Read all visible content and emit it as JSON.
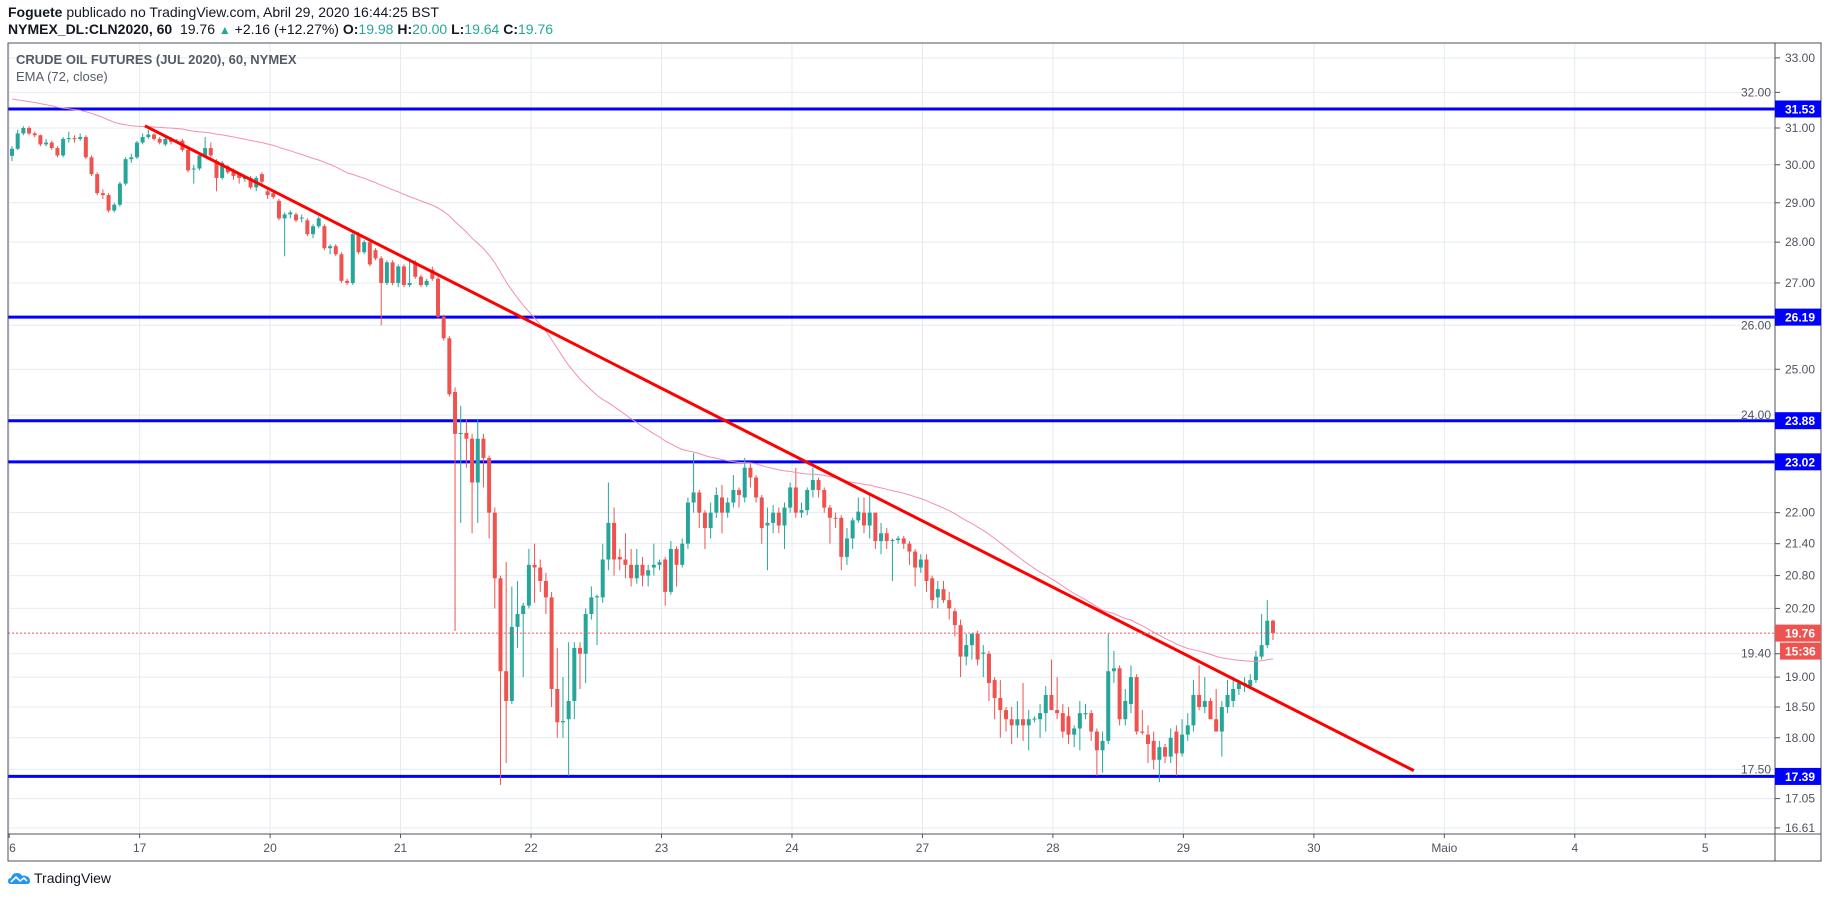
{
  "header": {
    "author": "Foguete",
    "published_text": "publicado no TradingView.com, Abril 29, 2020 16:44:25 BST",
    "symbol": "NYMEX_DL:CLN2020, 60",
    "last": "19.76",
    "change": "+2.16 (+12.27%)",
    "o_label": "O:",
    "o": "19.98",
    "h_label": "H:",
    "h": "20.00",
    "l_label": "L:",
    "l": "19.64",
    "c_label": "C:",
    "c": "19.76",
    "up_icon": "triangle-up"
  },
  "legend": {
    "title": "CRUDE OIL FUTURES (JUL 2020), 60, NYMEX",
    "indicator": "EMA (72, close)"
  },
  "footer": {
    "brand": "TradingView",
    "logo_icon": "tradingview-cloud-logo"
  },
  "chart_data": {
    "type": "candlestick",
    "title": "CRUDE OIL FUTURES (JUL 2020), 60, NYMEX",
    "interval": "60",
    "y_scale": "log",
    "ylim": [
      16.52,
      33.44
    ],
    "grid": true,
    "colors": {
      "up": "#26a69a",
      "down": "#ef5350",
      "ema": "#f48fb1",
      "trendline": "#ff0000",
      "levels": "#0000ff",
      "last_price": "#ef5350",
      "grid": "#e4ecf2"
    },
    "y_ticks": [
      "33.00",
      "32.00",
      "31.00",
      "30.00",
      "29.00",
      "28.00",
      "27.00",
      "26.00",
      "25.00",
      "24.00",
      "22.00",
      "21.40",
      "20.80",
      "20.20",
      "19.40",
      "19.00",
      "18.50",
      "18.00",
      "17.50",
      "17.05",
      "16.61"
    ],
    "x_ticks": [
      "6",
      "17",
      "20",
      "21",
      "22",
      "23",
      "24",
      "27",
      "28",
      "29",
      "30",
      "Maio",
      "4",
      "5"
    ],
    "ema": {
      "label": "EMA (72, close)",
      "period": 72,
      "start_value": 31.85
    },
    "trendline": {
      "start": {
        "bar": 23.4,
        "price": 31.06
      },
      "end": {
        "bar": 246.8,
        "price": 17.48
      }
    },
    "levels": [
      {
        "price": 31.53,
        "label": "31.53"
      },
      {
        "price": 26.19,
        "label": "26.19"
      },
      {
        "price": 23.88,
        "label": "23.88"
      },
      {
        "price": 23.02,
        "label": "23.02"
      },
      {
        "price": 17.39,
        "label": "17.39"
      }
    ],
    "last_price": {
      "price": 19.76,
      "label": "19.76",
      "countdown": "15:36"
    },
    "candles": [
      [
        30.24,
        30.5,
        30.1,
        30.43
      ],
      [
        30.43,
        30.95,
        30.4,
        30.85
      ],
      [
        30.85,
        31.05,
        30.8,
        31.0
      ],
      [
        31.0,
        31.05,
        30.8,
        30.85
      ],
      [
        30.85,
        30.9,
        30.75,
        30.8
      ],
      [
        30.8,
        30.82,
        30.5,
        30.55
      ],
      [
        30.55,
        30.7,
        30.5,
        30.6
      ],
      [
        30.6,
        30.65,
        30.4,
        30.45
      ],
      [
        30.45,
        30.5,
        30.2,
        30.25
      ],
      [
        30.25,
        30.75,
        30.2,
        30.7
      ],
      [
        30.7,
        30.9,
        30.6,
        30.72
      ],
      [
        30.72,
        30.8,
        30.6,
        30.7
      ],
      [
        30.7,
        30.85,
        30.65,
        30.75
      ],
      [
        30.75,
        30.8,
        30.15,
        30.2
      ],
      [
        30.2,
        30.25,
        29.7,
        29.75
      ],
      [
        29.75,
        29.8,
        29.2,
        29.25
      ],
      [
        29.25,
        29.35,
        29.1,
        29.2
      ],
      [
        29.2,
        29.25,
        28.75,
        28.8
      ],
      [
        28.8,
        29.0,
        28.75,
        28.95
      ],
      [
        28.95,
        29.55,
        28.9,
        29.5
      ],
      [
        29.5,
        30.2,
        29.45,
        30.15
      ],
      [
        30.15,
        30.3,
        30.05,
        30.2
      ],
      [
        30.2,
        30.65,
        30.15,
        30.6
      ],
      [
        30.6,
        30.85,
        30.55,
        30.75
      ],
      [
        30.75,
        30.95,
        30.7,
        30.82
      ],
      [
        30.82,
        30.85,
        30.65,
        30.7
      ],
      [
        30.7,
        30.75,
        30.55,
        30.6
      ],
      [
        30.55,
        30.75,
        30.5,
        30.7
      ],
      [
        30.7,
        30.75,
        30.55,
        30.62
      ],
      [
        30.65,
        30.7,
        30.6,
        30.62
      ],
      [
        30.65,
        30.7,
        30.35,
        30.4
      ],
      [
        30.4,
        30.45,
        29.8,
        29.85
      ],
      [
        29.9,
        30.0,
        29.5,
        29.9
      ],
      [
        29.9,
        30.3,
        29.85,
        30.25
      ],
      [
        30.25,
        30.75,
        30.2,
        30.45
      ],
      [
        30.45,
        30.6,
        30.2,
        30.25
      ],
      [
        30.1,
        30.15,
        29.3,
        29.65
      ],
      [
        29.65,
        30.1,
        29.6,
        30.05
      ],
      [
        29.95,
        30.0,
        29.75,
        29.8
      ],
      [
        29.85,
        29.9,
        29.6,
        29.7
      ],
      [
        29.75,
        29.8,
        29.5,
        29.65
      ],
      [
        29.62,
        29.7,
        29.55,
        29.66
      ],
      [
        29.65,
        29.7,
        29.35,
        29.4
      ],
      [
        29.4,
        29.7,
        29.3,
        29.65
      ],
      [
        29.75,
        29.8,
        29.5,
        29.55
      ],
      [
        29.3,
        29.35,
        29.1,
        29.2
      ],
      [
        29.25,
        29.3,
        29.1,
        29.15
      ],
      [
        29.05,
        29.1,
        28.55,
        28.6
      ],
      [
        28.6,
        28.75,
        27.65,
        28.7
      ],
      [
        28.7,
        28.8,
        28.6,
        28.75
      ],
      [
        28.7,
        28.75,
        28.5,
        28.55
      ],
      [
        28.6,
        28.7,
        28.5,
        28.62
      ],
      [
        28.55,
        28.6,
        28.15,
        28.2
      ],
      [
        28.2,
        28.45,
        28.1,
        28.4
      ],
      [
        28.4,
        28.65,
        28.35,
        28.6
      ],
      [
        28.4,
        28.45,
        27.8,
        27.85
      ],
      [
        27.85,
        27.95,
        27.7,
        27.9
      ],
      [
        27.9,
        27.95,
        27.65,
        27.7
      ],
      [
        27.7,
        27.75,
        27.0,
        27.05
      ],
      [
        27.05,
        27.1,
        26.95,
        27.0
      ],
      [
        27.0,
        28.3,
        26.95,
        28.2
      ],
      [
        28.2,
        28.25,
        27.7,
        27.75
      ],
      [
        27.75,
        28.05,
        27.7,
        28.0
      ],
      [
        28.0,
        28.05,
        27.4,
        27.45
      ],
      [
        27.8,
        27.85,
        27.55,
        27.6
      ],
      [
        27.6,
        27.65,
        26.0,
        27.0
      ],
      [
        27.0,
        27.55,
        26.95,
        27.5
      ],
      [
        27.5,
        27.55,
        26.95,
        27.0
      ],
      [
        27.0,
        27.45,
        26.9,
        27.4
      ],
      [
        27.4,
        27.45,
        26.9,
        26.95
      ],
      [
        26.95,
        27.6,
        26.9,
        27.0
      ],
      [
        27.5,
        27.55,
        27.1,
        27.15
      ],
      [
        27.15,
        27.2,
        26.9,
        26.95
      ],
      [
        26.95,
        27.1,
        26.9,
        27.05
      ],
      [
        27.32,
        27.4,
        27.05,
        27.1
      ],
      [
        27.1,
        27.15,
        26.15,
        26.2
      ],
      [
        26.2,
        26.25,
        25.65,
        25.7
      ],
      [
        25.7,
        25.75,
        24.4,
        24.45
      ],
      [
        24.5,
        24.6,
        19.8,
        23.6
      ],
      [
        23.6,
        24.2,
        21.8,
        23.62
      ],
      [
        23.62,
        23.9,
        22.9,
        23.5
      ],
      [
        23.5,
        23.6,
        21.6,
        22.6
      ],
      [
        22.6,
        23.9,
        21.8,
        23.5
      ],
      [
        23.5,
        23.6,
        22.5,
        23.1
      ],
      [
        23.1,
        23.15,
        21.5,
        22.0
      ],
      [
        22.0,
        22.1,
        20.2,
        20.75
      ],
      [
        20.75,
        20.8,
        17.26,
        19.1
      ],
      [
        19.1,
        21.05,
        17.6,
        18.6
      ],
      [
        18.6,
        20.6,
        18.55,
        19.87
      ],
      [
        19.87,
        20.7,
        19.5,
        20.1
      ],
      [
        20.1,
        20.3,
        19.0,
        20.25
      ],
      [
        20.25,
        21.3,
        20.2,
        21.0
      ],
      [
        21.0,
        21.4,
        20.3,
        20.95
      ],
      [
        20.95,
        21.1,
        20.5,
        20.7
      ],
      [
        20.7,
        20.85,
        20.1,
        20.4
      ],
      [
        20.4,
        20.5,
        18.5,
        18.8
      ],
      [
        18.8,
        19.5,
        18.0,
        18.25
      ],
      [
        18.25,
        19.0,
        18.0,
        18.27
      ],
      [
        18.3,
        19.6,
        17.4,
        18.6
      ],
      [
        18.6,
        19.6,
        18.3,
        19.5
      ],
      [
        19.5,
        19.6,
        18.8,
        19.4
      ],
      [
        19.4,
        20.2,
        18.9,
        20.1
      ],
      [
        20.1,
        20.6,
        20.0,
        20.4
      ],
      [
        20.4,
        20.45,
        19.55,
        20.42
      ],
      [
        20.4,
        21.4,
        20.3,
        21.1
      ],
      [
        21.1,
        22.6,
        20.9,
        21.8
      ],
      [
        21.8,
        22.1,
        20.8,
        21.1
      ],
      [
        21.15,
        21.3,
        20.9,
        21.1
      ],
      [
        21.1,
        21.6,
        20.75,
        21.0
      ],
      [
        21.0,
        21.3,
        20.6,
        20.75
      ],
      [
        20.75,
        21.3,
        20.65,
        21.0
      ],
      [
        21.0,
        21.15,
        20.6,
        20.8
      ],
      [
        20.8,
        21.0,
        20.6,
        20.9
      ],
      [
        20.95,
        21.4,
        20.8,
        21.0
      ],
      [
        21.0,
        21.1,
        20.9,
        21.05
      ],
      [
        21.1,
        21.15,
        20.25,
        20.5
      ],
      [
        20.5,
        21.45,
        20.45,
        21.3
      ],
      [
        21.3,
        21.35,
        20.6,
        21.0
      ],
      [
        21.0,
        21.5,
        20.95,
        21.4
      ],
      [
        21.4,
        22.3,
        21.3,
        22.2
      ],
      [
        22.2,
        23.2,
        22.0,
        22.4
      ],
      [
        22.4,
        22.45,
        21.7,
        22.0
      ],
      [
        22.0,
        22.05,
        21.3,
        21.7
      ],
      [
        21.7,
        22.2,
        21.5,
        22.0
      ],
      [
        22.0,
        22.5,
        21.9,
        22.35
      ],
      [
        22.3,
        22.55,
        21.6,
        22.0
      ],
      [
        22.0,
        22.3,
        21.9,
        22.2
      ],
      [
        22.2,
        22.75,
        22.1,
        22.45
      ],
      [
        22.45,
        22.5,
        22.1,
        22.35
      ],
      [
        22.3,
        23.1,
        22.2,
        22.9
      ],
      [
        22.9,
        23.0,
        22.5,
        22.7
      ],
      [
        22.7,
        22.75,
        22.2,
        22.3
      ],
      [
        22.3,
        22.35,
        21.4,
        21.7
      ],
      [
        21.75,
        22.1,
        20.9,
        21.8
      ],
      [
        21.8,
        22.15,
        21.6,
        22.0
      ],
      [
        22.0,
        22.1,
        21.6,
        21.75
      ],
      [
        21.75,
        22.2,
        21.3,
        22.1
      ],
      [
        22.1,
        22.6,
        22.0,
        22.5
      ],
      [
        22.5,
        22.9,
        21.9,
        22.0
      ],
      [
        22.0,
        22.2,
        21.9,
        22.05
      ],
      [
        22.05,
        22.5,
        21.95,
        22.45
      ],
      [
        22.45,
        22.9,
        22.3,
        22.65
      ],
      [
        22.65,
        22.7,
        22.3,
        22.45
      ],
      [
        22.45,
        22.5,
        22.0,
        22.1
      ],
      [
        22.1,
        22.15,
        21.4,
        21.9
      ],
      [
        21.9,
        22.0,
        21.7,
        21.88
      ],
      [
        21.9,
        21.95,
        20.9,
        21.15
      ],
      [
        21.15,
        21.7,
        21.0,
        21.5
      ],
      [
        21.5,
        21.9,
        21.3,
        21.85
      ],
      [
        21.85,
        22.3,
        21.8,
        22.02
      ],
      [
        22.0,
        22.3,
        21.6,
        21.75
      ],
      [
        21.75,
        22.4,
        21.5,
        22.0
      ],
      [
        22.0,
        22.0,
        21.3,
        21.45
      ],
      [
        21.45,
        21.8,
        21.2,
        21.6
      ],
      [
        21.6,
        21.7,
        21.3,
        21.45
      ],
      [
        21.45,
        21.5,
        20.7,
        21.47
      ],
      [
        21.47,
        21.55,
        21.4,
        21.5
      ],
      [
        21.5,
        21.55,
        21.3,
        21.4
      ],
      [
        21.4,
        21.45,
        21.0,
        21.25
      ],
      [
        21.25,
        21.3,
        20.6,
        20.95
      ],
      [
        20.95,
        21.2,
        20.85,
        21.1
      ],
      [
        21.1,
        21.2,
        20.5,
        20.7
      ],
      [
        20.75,
        20.8,
        20.2,
        20.35
      ],
      [
        20.4,
        20.7,
        20.2,
        20.55
      ],
      [
        20.55,
        20.7,
        20.3,
        20.35
      ],
      [
        20.35,
        20.5,
        20.0,
        20.2
      ],
      [
        20.15,
        20.2,
        19.7,
        19.9
      ],
      [
        19.9,
        20.0,
        19.0,
        19.35
      ],
      [
        19.35,
        19.75,
        19.2,
        19.55
      ],
      [
        19.55,
        19.75,
        19.3,
        19.75
      ],
      [
        19.75,
        19.8,
        19.2,
        19.3
      ],
      [
        19.4,
        19.55,
        19.0,
        19.42
      ],
      [
        19.4,
        19.45,
        18.6,
        18.9
      ],
      [
        18.95,
        19.0,
        18.3,
        18.65
      ],
      [
        18.65,
        18.95,
        18.0,
        18.45
      ],
      [
        18.45,
        18.5,
        18.1,
        18.3
      ],
      [
        18.3,
        18.5,
        17.9,
        18.2
      ],
      [
        18.2,
        18.6,
        18.0,
        18.3
      ],
      [
        18.3,
        18.9,
        17.95,
        18.2
      ],
      [
        18.2,
        18.45,
        17.8,
        18.3
      ],
      [
        18.3,
        18.35,
        18.25,
        18.31
      ],
      [
        18.3,
        18.55,
        18.0,
        18.4
      ],
      [
        18.4,
        18.85,
        18.1,
        18.7
      ],
      [
        18.7,
        19.3,
        18.5,
        18.45
      ],
      [
        18.45,
        19.0,
        18.3,
        18.4
      ],
      [
        18.4,
        18.55,
        18.0,
        18.1
      ],
      [
        18.35,
        18.5,
        17.9,
        18.05
      ],
      [
        18.05,
        18.2,
        17.85,
        18.15
      ],
      [
        18.15,
        18.6,
        17.8,
        18.4
      ],
      [
        18.38,
        18.55,
        18.3,
        18.4
      ],
      [
        18.4,
        18.45,
        17.95,
        18.1
      ],
      [
        18.1,
        18.15,
        17.4,
        17.8
      ],
      [
        17.8,
        18.1,
        17.45,
        17.95
      ],
      [
        17.95,
        19.75,
        17.9,
        19.1
      ],
      [
        19.1,
        19.45,
        18.9,
        19.15
      ],
      [
        19.15,
        19.2,
        18.2,
        18.3
      ],
      [
        18.3,
        18.8,
        18.2,
        18.6
      ],
      [
        18.55,
        19.2,
        18.4,
        19.0
      ],
      [
        19.0,
        19.05,
        18.05,
        18.1
      ],
      [
        18.1,
        18.45,
        18.05,
        18.08
      ],
      [
        18.05,
        18.2,
        17.6,
        17.9
      ],
      [
        17.95,
        18.1,
        17.5,
        17.65
      ],
      [
        17.65,
        17.95,
        17.3,
        17.85
      ],
      [
        17.85,
        17.9,
        17.6,
        17.7
      ],
      [
        17.7,
        18.15,
        17.6,
        18.0
      ],
      [
        18.1,
        18.2,
        17.4,
        17.75
      ],
      [
        17.75,
        18.3,
        17.7,
        18.05
      ],
      [
        18.05,
        18.4,
        17.95,
        18.2
      ],
      [
        18.2,
        18.95,
        18.1,
        18.7
      ],
      [
        18.7,
        19.2,
        18.45,
        18.5
      ],
      [
        18.5,
        19.0,
        18.4,
        18.6
      ],
      [
        18.6,
        18.65,
        18.3,
        18.3
      ],
      [
        18.3,
        18.8,
        18.1,
        18.1
      ],
      [
        18.1,
        18.6,
        17.7,
        18.5
      ],
      [
        18.5,
        18.95,
        18.4,
        18.7
      ],
      [
        18.6,
        19.0,
        18.5,
        18.8
      ],
      [
        18.8,
        18.95,
        18.7,
        18.9
      ],
      [
        18.88,
        19.0,
        18.75,
        18.9
      ],
      [
        18.85,
        19.05,
        18.8,
        18.95
      ],
      [
        18.95,
        19.45,
        18.9,
        19.35
      ],
      [
        19.35,
        20.1,
        19.3,
        19.55
      ],
      [
        19.55,
        20.35,
        19.5,
        19.98
      ],
      [
        19.98,
        20.0,
        19.64,
        19.76
      ]
    ]
  }
}
